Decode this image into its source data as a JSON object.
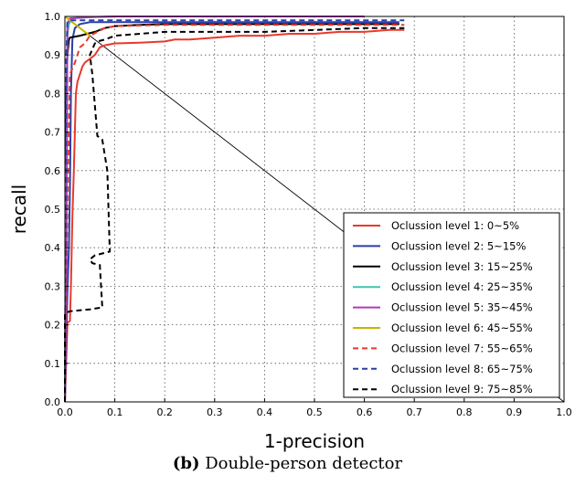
{
  "caption": {
    "label": "(b)",
    "text": "Double-person detector"
  },
  "chart_data": {
    "type": "line",
    "xlabel": "1-precision",
    "ylabel": "recall",
    "xlim": [
      0,
      1
    ],
    "ylim": [
      0,
      1
    ],
    "xticks": [
      "0.0",
      "0.1",
      "0.2",
      "0.3",
      "0.4",
      "0.5",
      "0.6",
      "0.7",
      "0.8",
      "0.9",
      "1.0"
    ],
    "yticks": [
      "0.0",
      "0.1",
      "0.2",
      "0.3",
      "0.4",
      "0.5",
      "0.6",
      "0.7",
      "0.8",
      "0.9",
      "1.0"
    ],
    "grid": true,
    "legend_position": "bottom-right",
    "reference_line": {
      "x": [
        0,
        1
      ],
      "y": [
        1,
        0
      ],
      "color": "#000000"
    },
    "series": [
      {
        "name": "Oclussion level 1: 0~5%",
        "color": "#e8392c",
        "dash": "solid",
        "x": [
          0.0,
          0.005,
          0.01,
          0.012,
          0.015,
          0.018,
          0.02,
          0.022,
          0.025,
          0.03,
          0.035,
          0.04,
          0.05,
          0.06,
          0.07,
          0.08,
          0.1,
          0.15,
          0.2,
          0.22,
          0.25,
          0.3,
          0.35,
          0.4,
          0.45,
          0.5,
          0.55,
          0.6,
          0.65,
          0.68
        ],
        "y": [
          0.0,
          0.205,
          0.21,
          0.3,
          0.48,
          0.6,
          0.7,
          0.8,
          0.83,
          0.85,
          0.87,
          0.88,
          0.89,
          0.9,
          0.92,
          0.925,
          0.93,
          0.932,
          0.935,
          0.94,
          0.94,
          0.945,
          0.95,
          0.95,
          0.955,
          0.955,
          0.96,
          0.96,
          0.965,
          0.965
        ]
      },
      {
        "name": "Oclussion level 2: 5~15%",
        "color": "#2b3fa8",
        "dash": "solid",
        "x": [
          0.0,
          0.005,
          0.008,
          0.01,
          0.012,
          0.015,
          0.02,
          0.03,
          0.05,
          0.1,
          0.2,
          0.3,
          0.4,
          0.5,
          0.6,
          0.67
        ],
        "y": [
          0.0,
          0.28,
          0.4,
          0.55,
          0.8,
          0.94,
          0.97,
          0.98,
          0.985,
          0.985,
          0.985,
          0.985,
          0.985,
          0.985,
          0.985,
          0.985
        ]
      },
      {
        "name": "Oclussion level 3: 15~25%",
        "color": "#000000",
        "dash": "solid",
        "x": [
          0.0,
          0.003,
          0.005,
          0.008,
          0.01,
          0.03,
          0.06,
          0.08,
          0.1,
          0.15,
          0.2,
          0.3,
          0.4,
          0.5,
          0.6,
          0.67
        ],
        "y": [
          0.0,
          0.8,
          0.9,
          0.94,
          0.945,
          0.95,
          0.96,
          0.97,
          0.975,
          0.978,
          0.98,
          0.98,
          0.98,
          0.98,
          0.98,
          0.98
        ]
      },
      {
        "name": "Oclussion level 4: 25~35%",
        "color": "#3ec4b0",
        "dash": "solid",
        "x": [
          0.0,
          0.003,
          0.005,
          0.008,
          0.015,
          0.05,
          0.1,
          0.2,
          0.3,
          0.4,
          0.5,
          0.6
        ],
        "y": [
          0.0,
          0.6,
          0.95,
          0.98,
          0.995,
          0.998,
          1.0,
          1.0,
          1.0,
          1.0,
          1.0,
          1.0
        ]
      },
      {
        "name": "Oclussion level 5: 35~45%",
        "color": "#b03ab8",
        "dash": "solid",
        "x": [
          0.0,
          0.003,
          0.005,
          0.01,
          0.05,
          0.1,
          0.2,
          0.3,
          0.4,
          0.5,
          0.6
        ],
        "y": [
          0.0,
          0.3,
          0.98,
          0.995,
          0.998,
          1.0,
          1.0,
          1.0,
          1.0,
          1.0,
          1.0
        ]
      },
      {
        "name": "Oclussion level 6: 45~55%",
        "color": "#c8b400",
        "dash": "solid",
        "x": [
          0.0,
          0.005,
          0.03,
          0.05
        ],
        "y": [
          1.0,
          0.995,
          0.97,
          0.95
        ]
      },
      {
        "name": "Oclussion level 7: 55~65%",
        "color": "#e8392c",
        "dash": "dashed",
        "x": [
          0.0,
          0.005,
          0.01,
          0.02,
          0.025,
          0.03,
          0.04,
          0.05,
          0.08,
          0.1,
          0.2,
          0.3,
          0.4,
          0.5,
          0.6,
          0.68
        ],
        "y": [
          0.0,
          0.5,
          0.85,
          0.88,
          0.9,
          0.92,
          0.93,
          0.95,
          0.97,
          0.975,
          0.978,
          0.978,
          0.978,
          0.978,
          0.978,
          0.978
        ]
      },
      {
        "name": "Oclussion level 8: 65~75%",
        "color": "#2b3fa8",
        "dash": "dashed",
        "x": [
          0.0,
          0.003,
          0.005,
          0.01,
          0.05,
          0.1,
          0.2,
          0.3,
          0.4,
          0.5,
          0.6,
          0.68
        ],
        "y": [
          0.0,
          0.9,
          0.985,
          0.99,
          0.99,
          0.99,
          0.99,
          0.99,
          0.99,
          0.99,
          0.99,
          0.99
        ]
      },
      {
        "name": "Oclussion level 9: 75~85%",
        "color": "#000000",
        "dash": "dashed",
        "x": [
          0.0,
          0.0,
          0.01,
          0.05,
          0.075,
          0.07,
          0.055,
          0.05,
          0.06,
          0.09,
          0.085,
          0.075,
          0.065,
          0.055,
          0.05,
          0.06,
          0.065,
          0.08,
          0.1,
          0.2,
          0.3,
          0.4,
          0.5,
          0.6,
          0.68
        ],
        "y": [
          0.0,
          0.23,
          0.235,
          0.24,
          0.245,
          0.355,
          0.36,
          0.37,
          0.38,
          0.39,
          0.6,
          0.68,
          0.69,
          0.85,
          0.9,
          0.93,
          0.935,
          0.94,
          0.95,
          0.96,
          0.96,
          0.96,
          0.965,
          0.97,
          0.97
        ]
      }
    ]
  }
}
